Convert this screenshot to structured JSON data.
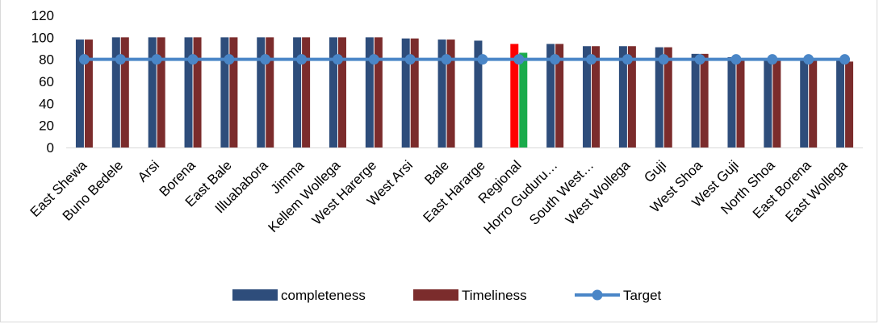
{
  "chart_data": {
    "type": "bar",
    "categories": [
      "East Shewa",
      "Buno Bedele",
      "Arsi",
      "Borena",
      "East Bale",
      "Illuababora",
      "Jimma",
      "Kellem Wollega",
      "West Harerge",
      "West Arsi",
      "Bale",
      "East Hararge",
      "Regional",
      "Horro Guduru…",
      "South West…",
      "West Wollega",
      "Guji",
      "West Shoa",
      "West Guji",
      "North Shoa",
      "East Borena",
      "East Wollega"
    ],
    "series": [
      {
        "name": "completeness",
        "kind": "bar",
        "color": "#2e4d7b",
        "values": [
          98,
          100,
          100,
          100,
          100,
          100,
          100,
          100,
          100,
          99,
          98,
          97,
          94,
          94,
          92,
          92,
          91,
          85,
          82,
          81,
          80,
          79
        ],
        "point_colors": {
          "12": "#ff0000"
        }
      },
      {
        "name": "Timeliness",
        "kind": "bar",
        "color": "#7b2c2c",
        "values": [
          98,
          100,
          100,
          100,
          100,
          100,
          100,
          100,
          100,
          99,
          98,
          0,
          86,
          94,
          92,
          92,
          91,
          85,
          81,
          80,
          79,
          78
        ],
        "point_colors": {
          "12": "#1aab4b"
        }
      },
      {
        "name": "Target",
        "kind": "line",
        "color": "#4a86c7",
        "values": [
          80,
          80,
          80,
          80,
          80,
          80,
          80,
          80,
          80,
          80,
          80,
          80,
          80,
          80,
          80,
          80,
          80,
          80,
          80,
          80,
          80,
          80
        ]
      }
    ],
    "yticks": [
      "0",
      "20",
      "40",
      "60",
      "80",
      "100",
      "120"
    ],
    "ylim": [
      0,
      120
    ],
    "grid": false,
    "legend_position": "bottom"
  }
}
